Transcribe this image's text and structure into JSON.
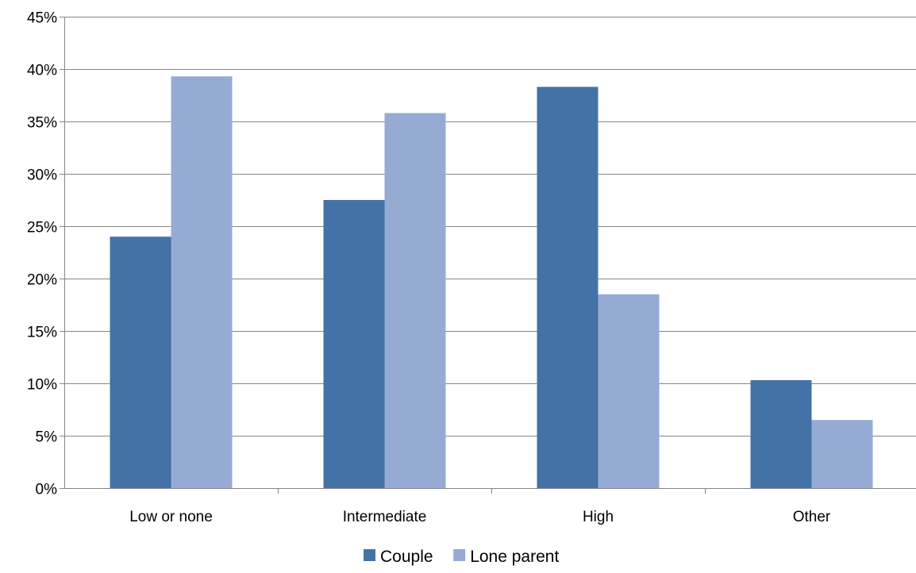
{
  "chart_data": {
    "type": "bar",
    "title": "",
    "xlabel": "",
    "ylabel": "",
    "categories": [
      "Low or none",
      "Intermediate",
      "High",
      "Other"
    ],
    "series": [
      {
        "name": "Couple",
        "values": [
          24.0,
          27.5,
          38.3,
          10.3
        ],
        "color": "#4472A6"
      },
      {
        "name": "Lone parent",
        "values": [
          39.3,
          35.8,
          18.5,
          6.5
        ],
        "color": "#95ABD3"
      }
    ],
    "ylim": [
      0,
      45
    ],
    "yticks": [
      0,
      5,
      10,
      15,
      20,
      25,
      30,
      35,
      40,
      45
    ],
    "ytick_labels": [
      "0%",
      "5%",
      "10%",
      "15%",
      "20%",
      "25%",
      "30%",
      "35%",
      "40%",
      "45%"
    ],
    "grid": true,
    "grid_color": "#868686",
    "legend_position": "bottom"
  }
}
